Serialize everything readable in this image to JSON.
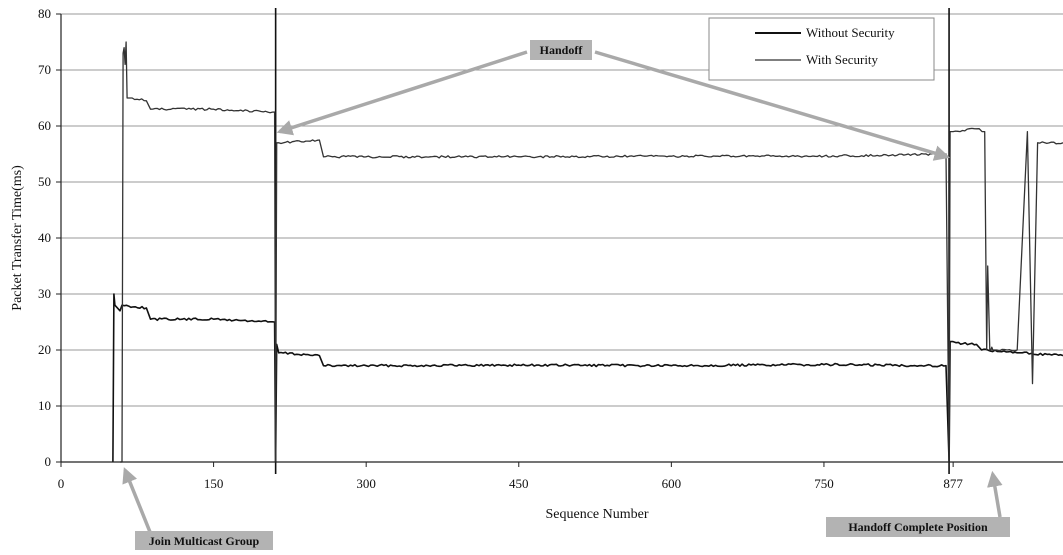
{
  "chart_data": {
    "type": "line",
    "title": "",
    "xlabel": "Sequence Number",
    "ylabel": "Packet Transfer Time(ms)",
    "xlim": [
      0,
      985
    ],
    "ylim": [
      0,
      80
    ],
    "x_ticks": [
      0,
      150,
      300,
      450,
      600,
      750,
      877
    ],
    "y_ticks": [
      0,
      10,
      20,
      30,
      40,
      50,
      60,
      70,
      80
    ],
    "grid": "horizontal",
    "legend_position": "top-right",
    "series": [
      {
        "name": "Without Security",
        "color": "#111111",
        "x": [
          51,
          52,
          53,
          58,
          60,
          84,
          88,
          150,
          210,
          211,
          212,
          214,
          254,
          258,
          300,
          450,
          600,
          750,
          870,
          873,
          874,
          877,
          880,
          900,
          905,
          940,
          945,
          985
        ],
        "y": [
          0,
          30,
          28,
          27,
          28,
          27.5,
          25.5,
          25.5,
          25,
          0,
          21,
          19.5,
          19,
          17.2,
          17.2,
          17.3,
          17.2,
          17.4,
          17.2,
          0,
          21.5,
          21.5,
          21.3,
          21,
          20,
          19.5,
          19.5,
          19
        ]
      },
      {
        "name": "With Security",
        "color": "#333333",
        "x": [
          58,
          60,
          61,
          62,
          63,
          64,
          65,
          70,
          84,
          88,
          150,
          210,
          211,
          212,
          214,
          254,
          258,
          300,
          450,
          600,
          750,
          870,
          873,
          874,
          877,
          900,
          908,
          910,
          911,
          913,
          914,
          915,
          916,
          918,
          920,
          930,
          940,
          950,
          955,
          960,
          985
        ],
        "y": [
          0,
          0,
          73,
          74,
          71,
          75,
          65,
          65,
          64.5,
          63,
          63,
          62.5,
          0,
          57,
          57,
          57.5,
          54.5,
          54.5,
          54.5,
          54.6,
          54.6,
          55,
          0,
          59,
          59,
          59.5,
          59,
          20,
          35,
          20,
          20,
          20.5,
          20,
          20,
          20,
          20,
          20,
          59,
          14,
          57,
          57
        ]
      }
    ],
    "annotations": [
      {
        "label": "Handoff",
        "targets": [
          211,
          873
        ]
      },
      {
        "label": "Join Multicast Group",
        "target": 60
      },
      {
        "label": "Handoff Complete Position",
        "target": 910
      }
    ]
  }
}
